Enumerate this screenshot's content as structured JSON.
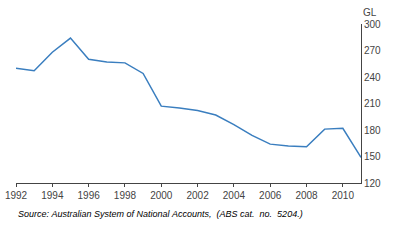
{
  "chart_data": {
    "type": "line",
    "ylabel": "GL",
    "annotations": [
      "Source: Australian System of National Accounts,  (ABS cat.  no.  5204.)"
    ],
    "x": [
      1992,
      1993,
      1994,
      1995,
      1996,
      1997,
      1998,
      1999,
      2000,
      2001,
      2002,
      2003,
      2004,
      2005,
      2006,
      2007,
      2008,
      2009,
      2010,
      2011
    ],
    "values": [
      250,
      247,
      268,
      284,
      260,
      257,
      256,
      244,
      207,
      205,
      202,
      197,
      186,
      174,
      164,
      162,
      161,
      181,
      182,
      149
    ],
    "color": "#3a7ebf",
    "xlim": [
      1992,
      2011
    ],
    "xticks": [
      1992,
      1994,
      1996,
      1998,
      2000,
      2002,
      2004,
      2006,
      2008,
      2010
    ],
    "ylim": [
      120,
      300
    ],
    "yticks": [
      120,
      150,
      180,
      210,
      240,
      270,
      300
    ],
    "grid": false
  }
}
